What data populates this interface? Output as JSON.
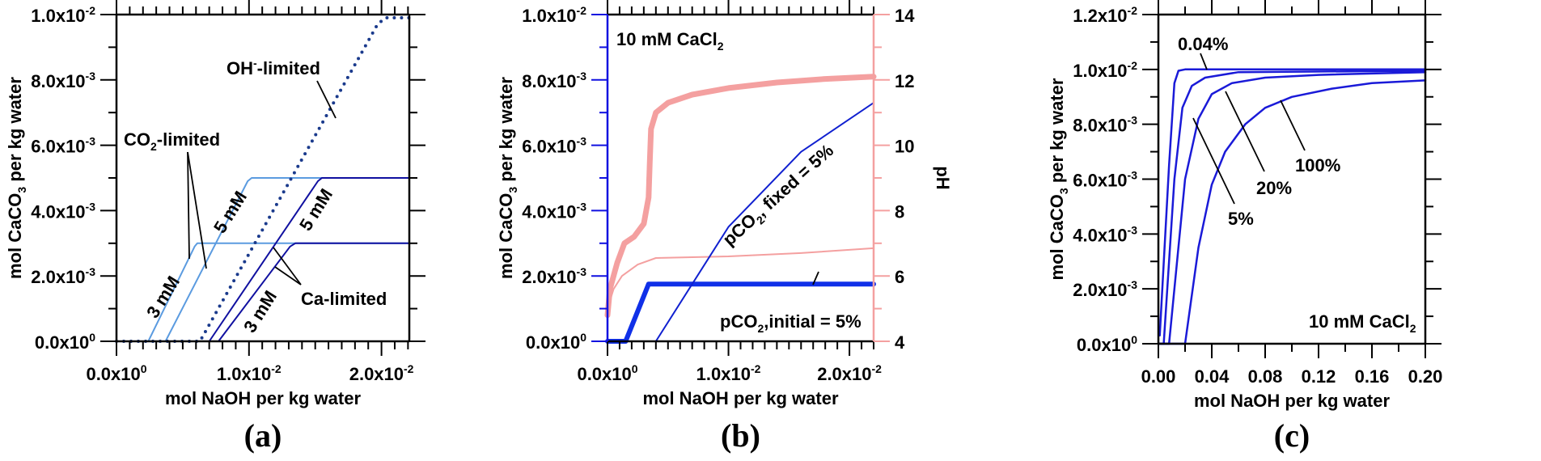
{
  "chart_data": [
    {
      "id": "a",
      "type": "line",
      "panel_label": "(a)",
      "xlabel": "mol NaOH per kg water",
      "ylabel": "mol CaCO3 per kg water",
      "xlim": [
        0,
        0.0221
      ],
      "ylim": [
        0,
        0.01
      ],
      "x_ticks": [
        {
          "v": 0,
          "mant": "0.0x10",
          "exp": "0"
        },
        {
          "v": 0.01,
          "mant": "1.0x10",
          "exp": "-2"
        },
        {
          "v": 0.02,
          "mant": "2.0x10",
          "exp": "-2"
        }
      ],
      "y_ticks": [
        {
          "v": 0,
          "mant": "0.0x10",
          "exp": "0"
        },
        {
          "v": 0.002,
          "mant": "2.0x10",
          "exp": "-3"
        },
        {
          "v": 0.004,
          "mant": "4.0x10",
          "exp": "-3"
        },
        {
          "v": 0.006,
          "mant": "6.0x10",
          "exp": "-3"
        },
        {
          "v": 0.008,
          "mant": "8.0x10",
          "exp": "-3"
        },
        {
          "v": 0.01,
          "mant": "1.0x10",
          "exp": "-2"
        }
      ],
      "series": [
        {
          "name": "CO2-limited 3 mM",
          "color": "#5b9be0",
          "style": "solid",
          "points": [
            [
              0,
              0
            ],
            [
              0.0024,
              0
            ],
            [
              0.0059,
              0.0029
            ],
            [
              0.0061,
              0.003
            ],
            [
              0.0221,
              0.003
            ]
          ]
        },
        {
          "name": "CO2-limited 5 mM",
          "color": "#5b9be0",
          "style": "solid",
          "points": [
            [
              0,
              0
            ],
            [
              0.0037,
              0
            ],
            [
              0.0099,
              0.0049
            ],
            [
              0.0102,
              0.005
            ],
            [
              0.0221,
              0.005
            ]
          ]
        },
        {
          "name": "OH-limited",
          "color": "#1a3a8c",
          "style": "dotted",
          "points": [
            [
              0,
              0
            ],
            [
              0.0063,
              0
            ],
            [
              0.0197,
              0.0097
            ],
            [
              0.0203,
              0.0099
            ],
            [
              0.0221,
              0.0099
            ]
          ]
        },
        {
          "name": "Ca-limited 5 mM",
          "color": "#1010a0",
          "style": "solid",
          "points": [
            [
              0,
              0
            ],
            [
              0.007,
              0
            ],
            [
              0.0152,
              0.0049
            ],
            [
              0.0155,
              0.005
            ],
            [
              0.0221,
              0.005
            ]
          ]
        },
        {
          "name": "Ca-limited 3 mM",
          "color": "#1010a0",
          "style": "solid",
          "points": [
            [
              0,
              0
            ],
            [
              0.0077,
              0
            ],
            [
              0.0131,
              0.0029
            ],
            [
              0.0135,
              0.003
            ],
            [
              0.0221,
              0.003
            ]
          ]
        }
      ],
      "annotations": [
        {
          "text": "OH",
          "sup": "-",
          "rest": "-limited"
        },
        {
          "text": "CO",
          "sub": "2",
          "rest": "-limited"
        },
        {
          "text": "Ca-limited"
        },
        {
          "text": "5 mM"
        },
        {
          "text": "3 mM"
        },
        {
          "text": "5 mM"
        },
        {
          "text": "3 mM"
        }
      ]
    },
    {
      "id": "b",
      "type": "line",
      "panel_label": "(b)",
      "xlabel": "mol NaOH per kg water",
      "ylabel": "mol CaCO3 per kg water",
      "y2label": "pH",
      "xlim": [
        0,
        0.022
      ],
      "ylim": [
        0,
        0.01
      ],
      "y2lim": [
        4,
        14
      ],
      "x_ticks": [
        {
          "v": 0,
          "mant": "0.0x10",
          "exp": "0"
        },
        {
          "v": 0.01,
          "mant": "1.0x10",
          "exp": "-2"
        },
        {
          "v": 0.02,
          "mant": "2.0x10",
          "exp": "-2"
        }
      ],
      "y_ticks": [
        {
          "v": 0,
          "mant": "0.0x10",
          "exp": "0"
        },
        {
          "v": 0.002,
          "mant": "2.0x10",
          "exp": "-3"
        },
        {
          "v": 0.004,
          "mant": "4.0x10",
          "exp": "-3"
        },
        {
          "v": 0.006,
          "mant": "6.0x10",
          "exp": "-3"
        },
        {
          "v": 0.008,
          "mant": "8.0x10",
          "exp": "-3"
        },
        {
          "v": 0.01,
          "mant": "1.0x10",
          "exp": "-2"
        }
      ],
      "y2_ticks": [
        4,
        6,
        8,
        10,
        12,
        14
      ],
      "series": [
        {
          "name": "pH (pCO2 initial = 5%)",
          "axis": "y2",
          "color": "#f4a0a0",
          "width": "thick",
          "points": [
            [
              0,
              4.8
            ],
            [
              0.0002,
              5.6
            ],
            [
              0.0008,
              6.4
            ],
            [
              0.0014,
              7.0
            ],
            [
              0.0022,
              7.2
            ],
            [
              0.003,
              7.6
            ],
            [
              0.0034,
              8.4
            ],
            [
              0.0035,
              9.5
            ],
            [
              0.0036,
              10.5
            ],
            [
              0.004,
              11.0
            ],
            [
              0.005,
              11.3
            ],
            [
              0.007,
              11.55
            ],
            [
              0.01,
              11.75
            ],
            [
              0.014,
              11.92
            ],
            [
              0.018,
              12.03
            ],
            [
              0.022,
              12.1
            ]
          ]
        },
        {
          "name": "pH (pCO2 fixed = 5%)",
          "axis": "y2",
          "color": "#f4a0a0",
          "width": "thin",
          "points": [
            [
              0,
              5.0
            ],
            [
              0.0005,
              5.6
            ],
            [
              0.0012,
              6.0
            ],
            [
              0.0025,
              6.35
            ],
            [
              0.004,
              6.55
            ],
            [
              0.01,
              6.6
            ],
            [
              0.016,
              6.7
            ],
            [
              0.022,
              6.85
            ]
          ]
        },
        {
          "name": "CaCO3 (pCO2 initial = 5%)",
          "axis": "y",
          "color": "#1030e8",
          "width": "thick",
          "points": [
            [
              0,
              0
            ],
            [
              0.0015,
              0
            ],
            [
              0.0034,
              0.00175
            ],
            [
              0.022,
              0.00175
            ]
          ]
        },
        {
          "name": "CaCO3 (pCO2 fixed = 5%)",
          "axis": "y",
          "color": "#1020d0",
          "width": "thin",
          "points": [
            [
              0,
              0
            ],
            [
              0.004,
              0
            ],
            [
              0.01,
              0.0035
            ],
            [
              0.016,
              0.0058
            ],
            [
              0.022,
              0.0073
            ]
          ]
        }
      ],
      "annotations": [
        {
          "text": "10 mM CaCl",
          "sub": "2"
        },
        {
          "text": "pCO",
          "sub": "2",
          "rest": ", fixed = 5%"
        },
        {
          "text": "pCO",
          "sub": "2",
          "rest": ",initial = 5%"
        }
      ]
    },
    {
      "id": "c",
      "type": "line",
      "panel_label": "(c)",
      "xlabel": "mol NaOH per kg water",
      "ylabel": "mol CaCO3 per kg water",
      "xlim": [
        0,
        0.2
      ],
      "ylim": [
        0,
        0.012
      ],
      "x_ticks": [
        {
          "v": 0,
          "label": "0.00"
        },
        {
          "v": 0.04,
          "label": "0.04"
        },
        {
          "v": 0.08,
          "label": "0.08"
        },
        {
          "v": 0.12,
          "label": "0.12"
        },
        {
          "v": 0.16,
          "label": "0.16"
        },
        {
          "v": 0.2,
          "label": "0.20"
        }
      ],
      "y_ticks": [
        {
          "v": 0,
          "mant": "0.0x10",
          "exp": "0"
        },
        {
          "v": 0.002,
          "mant": "2.0x10",
          "exp": "-3"
        },
        {
          "v": 0.004,
          "mant": "4.0x10",
          "exp": "-3"
        },
        {
          "v": 0.006,
          "mant": "6.0x10",
          "exp": "-3"
        },
        {
          "v": 0.008,
          "mant": "8.0x10",
          "exp": "-3"
        },
        {
          "v": 0.01,
          "mant": "1.0x10",
          "exp": "-2"
        },
        {
          "v": 0.012,
          "mant": "1.2x10",
          "exp": "-2"
        }
      ],
      "series": [
        {
          "name": "0.04%",
          "color": "#1a1ad8",
          "points": [
            [
              0.001,
              0.0003
            ],
            [
              0.008,
              0.0065
            ],
            [
              0.012,
              0.0095
            ],
            [
              0.015,
              0.00995
            ],
            [
              0.02,
              0.01
            ],
            [
              0.2,
              0.01
            ]
          ]
        },
        {
          "name": "5%",
          "color": "#1a1ad8",
          "points": [
            [
              0,
              0
            ],
            [
              0.004,
              0
            ],
            [
              0.012,
              0.006
            ],
            [
              0.018,
              0.0086
            ],
            [
              0.025,
              0.0094
            ],
            [
              0.035,
              0.0097
            ],
            [
              0.06,
              0.0099
            ],
            [
              0.2,
              0.00995
            ]
          ]
        },
        {
          "name": "20%",
          "color": "#1a1ad8",
          "points": [
            [
              0,
              0
            ],
            [
              0.008,
              0
            ],
            [
              0.02,
              0.006
            ],
            [
              0.03,
              0.0082
            ],
            [
              0.04,
              0.0091
            ],
            [
              0.055,
              0.0095
            ],
            [
              0.08,
              0.0097
            ],
            [
              0.12,
              0.0098
            ],
            [
              0.2,
              0.0099
            ]
          ]
        },
        {
          "name": "100%",
          "color": "#1a1ad8",
          "points": [
            [
              0,
              0
            ],
            [
              0.02,
              0
            ],
            [
              0.03,
              0.0035
            ],
            [
              0.04,
              0.0058
            ],
            [
              0.05,
              0.007
            ],
            [
              0.065,
              0.008
            ],
            [
              0.08,
              0.0086
            ],
            [
              0.1,
              0.009
            ],
            [
              0.13,
              0.0093
            ],
            [
              0.16,
              0.0095
            ],
            [
              0.2,
              0.0096
            ]
          ]
        }
      ],
      "annotations": [
        {
          "text": "0.04%"
        },
        {
          "text": "5%"
        },
        {
          "text": "20%"
        },
        {
          "text": "100%"
        },
        {
          "text": "10 mM CaCl",
          "sub": "2"
        }
      ]
    }
  ]
}
